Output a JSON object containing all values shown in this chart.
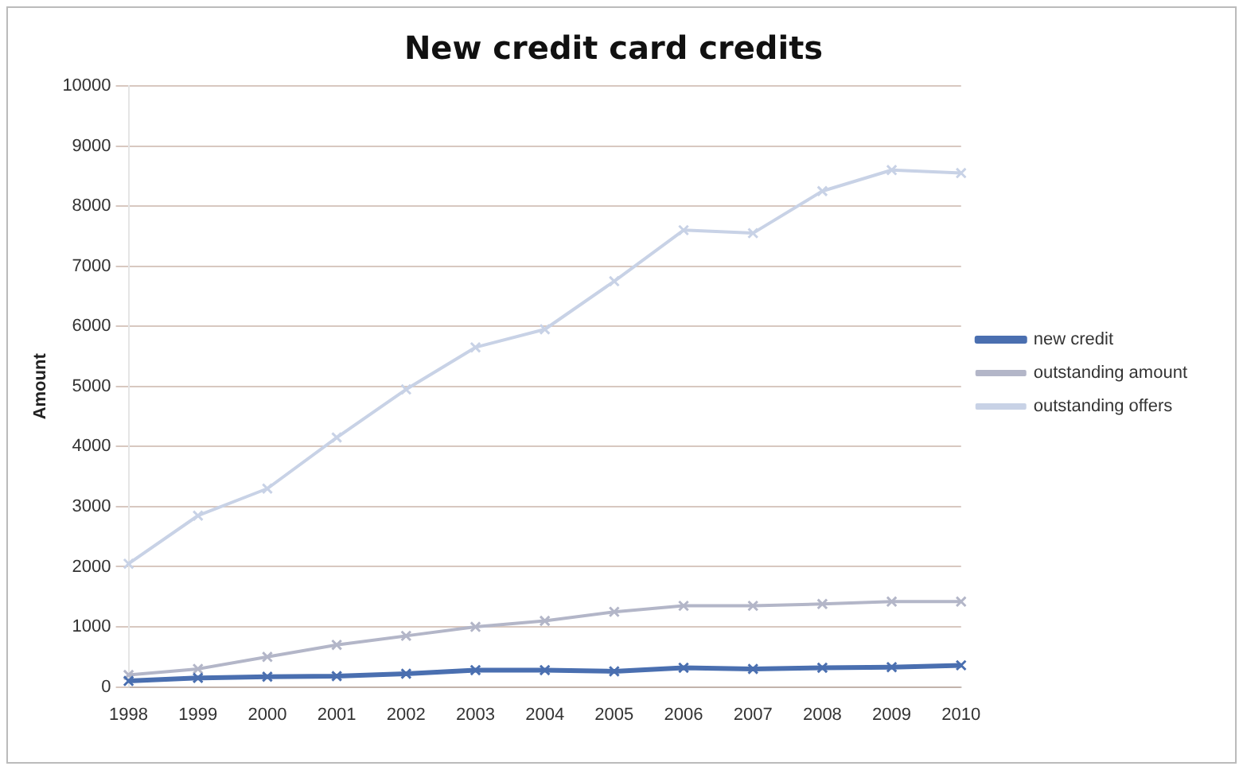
{
  "chart_data": {
    "type": "line",
    "title": "New credit card credits",
    "ylabel": "Amount",
    "categories": [
      "1998",
      "1999",
      "2000",
      "2001",
      "2002",
      "2003",
      "2004",
      "2005",
      "2006",
      "2007",
      "2008",
      "2009",
      "2010"
    ],
    "series": [
      {
        "name": "new credit",
        "color": "#4a6fb0",
        "values": [
          100,
          150,
          170,
          180,
          220,
          280,
          280,
          260,
          320,
          300,
          320,
          330,
          360
        ]
      },
      {
        "name": "outstanding amount",
        "color": "#b3b6c8",
        "values": [
          200,
          300,
          500,
          700,
          850,
          1000,
          1100,
          1250,
          1350,
          1350,
          1380,
          1420,
          1420
        ]
      },
      {
        "name": "outstanding offers",
        "color": "#c8d2e6",
        "values": [
          2050,
          2850,
          3300,
          4150,
          4950,
          5650,
          5950,
          6750,
          7600,
          7550,
          8250,
          8600,
          8550
        ]
      }
    ],
    "ylim": [
      0,
      10000
    ],
    "yticks": [
      0,
      1000,
      2000,
      3000,
      4000,
      5000,
      6000,
      7000,
      8000,
      9000,
      10000
    ],
    "grid": "y",
    "legend": "right",
    "marker": "cross"
  }
}
